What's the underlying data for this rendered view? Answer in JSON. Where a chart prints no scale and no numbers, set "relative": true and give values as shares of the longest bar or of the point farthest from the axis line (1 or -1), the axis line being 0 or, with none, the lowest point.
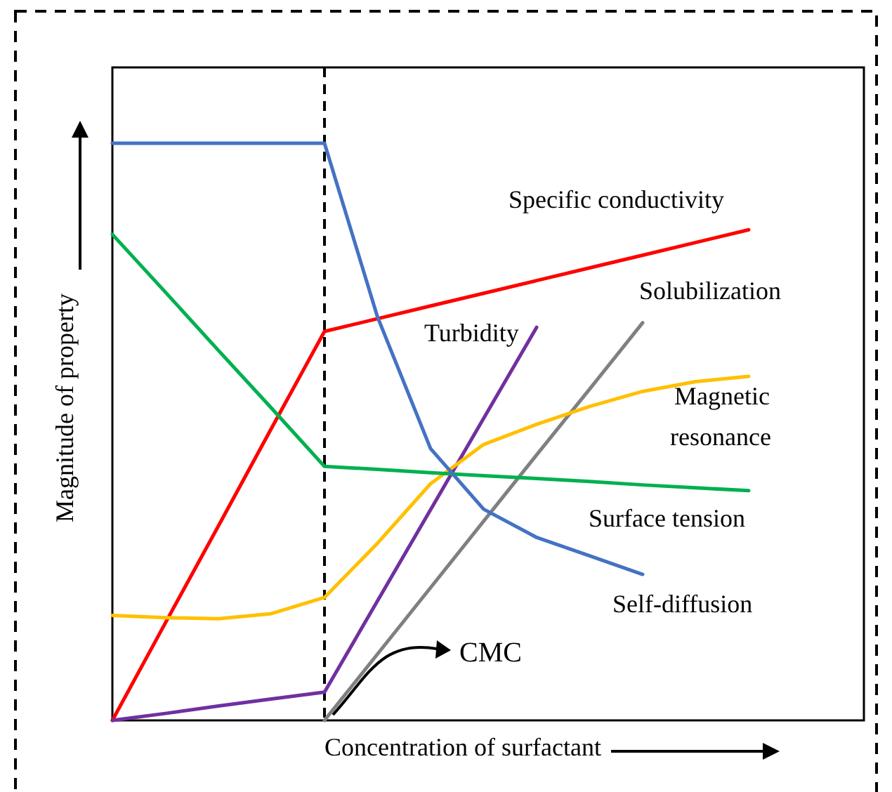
{
  "chart_data": {
    "type": "line",
    "relative": true,
    "xlabel": "Concentration of surfactant",
    "ylabel": "Magnitude of property",
    "marker": "none",
    "line_style": "solid",
    "categories": [
      null,
      null,
      null,
      null,
      null,
      null,
      null,
      null,
      null,
      null,
      null,
      null,
      null
    ],
    "annotations": [
      "CMC"
    ],
    "series": [
      {
        "name": "Specific conductivity",
        "color": "#ff0000",
        "values": [
          0,
          0.169,
          0.337,
          0.506,
          0.674,
          0.696,
          0.718,
          0.74,
          0.762,
          0.784,
          0.806,
          0.828,
          0.85
        ]
      },
      {
        "name": "Solubilization",
        "color": "#808080",
        "values": [
          null,
          null,
          null,
          null,
          0,
          0.115,
          0.23,
          0.345,
          0.46,
          0.574,
          0.689,
          null,
          null
        ]
      },
      {
        "name": "Turbidity",
        "color": "#7030a0",
        "values": [
          0,
          0.012,
          0.025,
          0.037,
          0.049,
          0.207,
          0.365,
          0.523,
          0.681,
          null,
          null,
          null,
          null
        ]
      },
      {
        "name": "Magnetic resonance",
        "color": "#ffc000",
        "values": [
          0.182,
          0.178,
          0.176,
          0.185,
          0.213,
          0.307,
          0.41,
          0.478,
          0.513,
          0.544,
          0.57,
          0.587,
          0.596
        ]
      },
      {
        "name": "Surface tension",
        "color": "#00b050",
        "values": [
          0.842,
          0.742,
          0.641,
          0.541,
          0.44,
          0.435,
          0.429,
          0.424,
          0.419,
          0.414,
          0.408,
          0.403,
          0.398
        ]
      },
      {
        "name": "Self-diffusion",
        "color": "#4472c4",
        "values": [
          1,
          1,
          1,
          1,
          1,
          0.699,
          0.471,
          0.366,
          0.317,
          0.285,
          0.253,
          null,
          null
        ]
      }
    ]
  }
}
